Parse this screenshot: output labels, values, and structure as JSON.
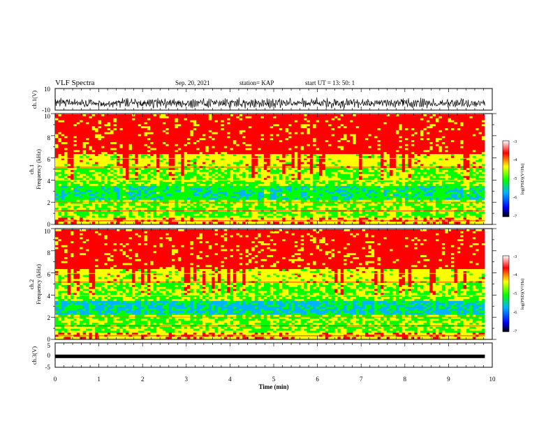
{
  "header": {
    "title": "VLF Spectra",
    "date": "Sep. 20, 2021",
    "station": "station= KAP",
    "start": "start  UT  =   13: 50: 1"
  },
  "chart_data": [
    {
      "type": "line",
      "ylabel": "ch.1(V)",
      "ylim": [
        -10,
        10
      ],
      "y_ticks": [
        "10",
        "-10"
      ],
      "xlim": [
        0,
        10
      ],
      "x_data_end": 9.83,
      "note": "noisy waveform roughly between -8 and 2"
    },
    {
      "type": "heatmap",
      "ylabel_top": "ch.1",
      "ylabel": "Frequency (kHz)",
      "ylim": [
        0,
        10
      ],
      "y_ticks": [
        "0",
        "2",
        "4",
        "6",
        "8",
        "10"
      ],
      "xlim": [
        0,
        10
      ],
      "x_data_end": 9.83,
      "colorbar": {
        "label": "log(PSD)(V²/Hz)",
        "range": [
          -7,
          -3
        ],
        "ticks": [
          "-3",
          "-4",
          "-5",
          "-6",
          "-7"
        ]
      }
    },
    {
      "type": "heatmap",
      "ylabel_top": "ch.2",
      "ylabel": "Frequency (kHz)",
      "ylim": [
        0,
        10
      ],
      "y_ticks": [
        "0",
        "2",
        "4",
        "6",
        "8",
        "10"
      ],
      "xlim": [
        0,
        10
      ],
      "x_data_end": 9.83,
      "colorbar": {
        "label": "log(PSD)(V²/Hz)",
        "range": [
          -7,
          -3
        ],
        "ticks": [
          "-3",
          "-4",
          "-5",
          "-6",
          "-7"
        ]
      }
    },
    {
      "type": "line",
      "ylabel": "ch.3(V)",
      "ylim": [
        -5,
        5
      ],
      "y_ticks": [
        "5",
        "0",
        "-5"
      ],
      "xlim": [
        0,
        10
      ],
      "x_data_end": 9.83,
      "xlabel": "Time  (min)",
      "x_ticks": [
        "0",
        "1",
        "2",
        "3",
        "4",
        "5",
        "6",
        "7",
        "8",
        "9",
        "10"
      ],
      "note": "flat thick trace near -0.5"
    }
  ],
  "colors": {
    "colormap": [
      "#000000",
      "#0000ff",
      "#00b4ff",
      "#00ff00",
      "#ffff00",
      "#ff0000",
      "#ffffff"
    ],
    "trace": "#000000"
  }
}
